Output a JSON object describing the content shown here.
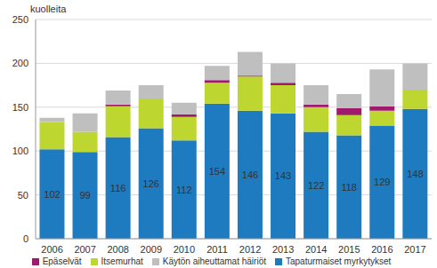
{
  "chart_data": {
    "type": "bar",
    "stacked": true,
    "y_label": "kuolleita",
    "categories": [
      "2006",
      "2007",
      "2008",
      "2009",
      "2010",
      "2011",
      "2012",
      "2013",
      "2014",
      "2015",
      "2016",
      "2017"
    ],
    "series": [
      {
        "name": "Tapaturmaiset myrkytykset",
        "color": "#1f7bbf",
        "data_labels": true,
        "values": [
          102,
          99,
          116,
          126,
          112,
          154,
          146,
          143,
          122,
          118,
          129,
          148
        ]
      },
      {
        "name": "Itsemurhat",
        "color": "#bed630",
        "values": [
          31,
          23,
          35,
          34,
          27,
          24,
          39,
          32,
          28,
          23,
          17,
          22
        ]
      },
      {
        "name": "Epäselvät",
        "color": "#9e1a6a",
        "values": [
          0,
          0,
          2,
          0,
          3,
          3,
          1,
          3,
          3,
          8,
          5,
          0
        ]
      },
      {
        "name": "Käytön aiheuttamat häiriöt",
        "color": "#bfbfbf",
        "values": [
          5,
          21,
          16,
          15,
          13,
          16,
          27,
          22,
          22,
          16,
          42,
          30
        ]
      }
    ],
    "ylim": [
      0,
      250
    ],
    "yticks": [
      0,
      50,
      100,
      150,
      200,
      250
    ],
    "grid": true,
    "legend": "bottom"
  }
}
